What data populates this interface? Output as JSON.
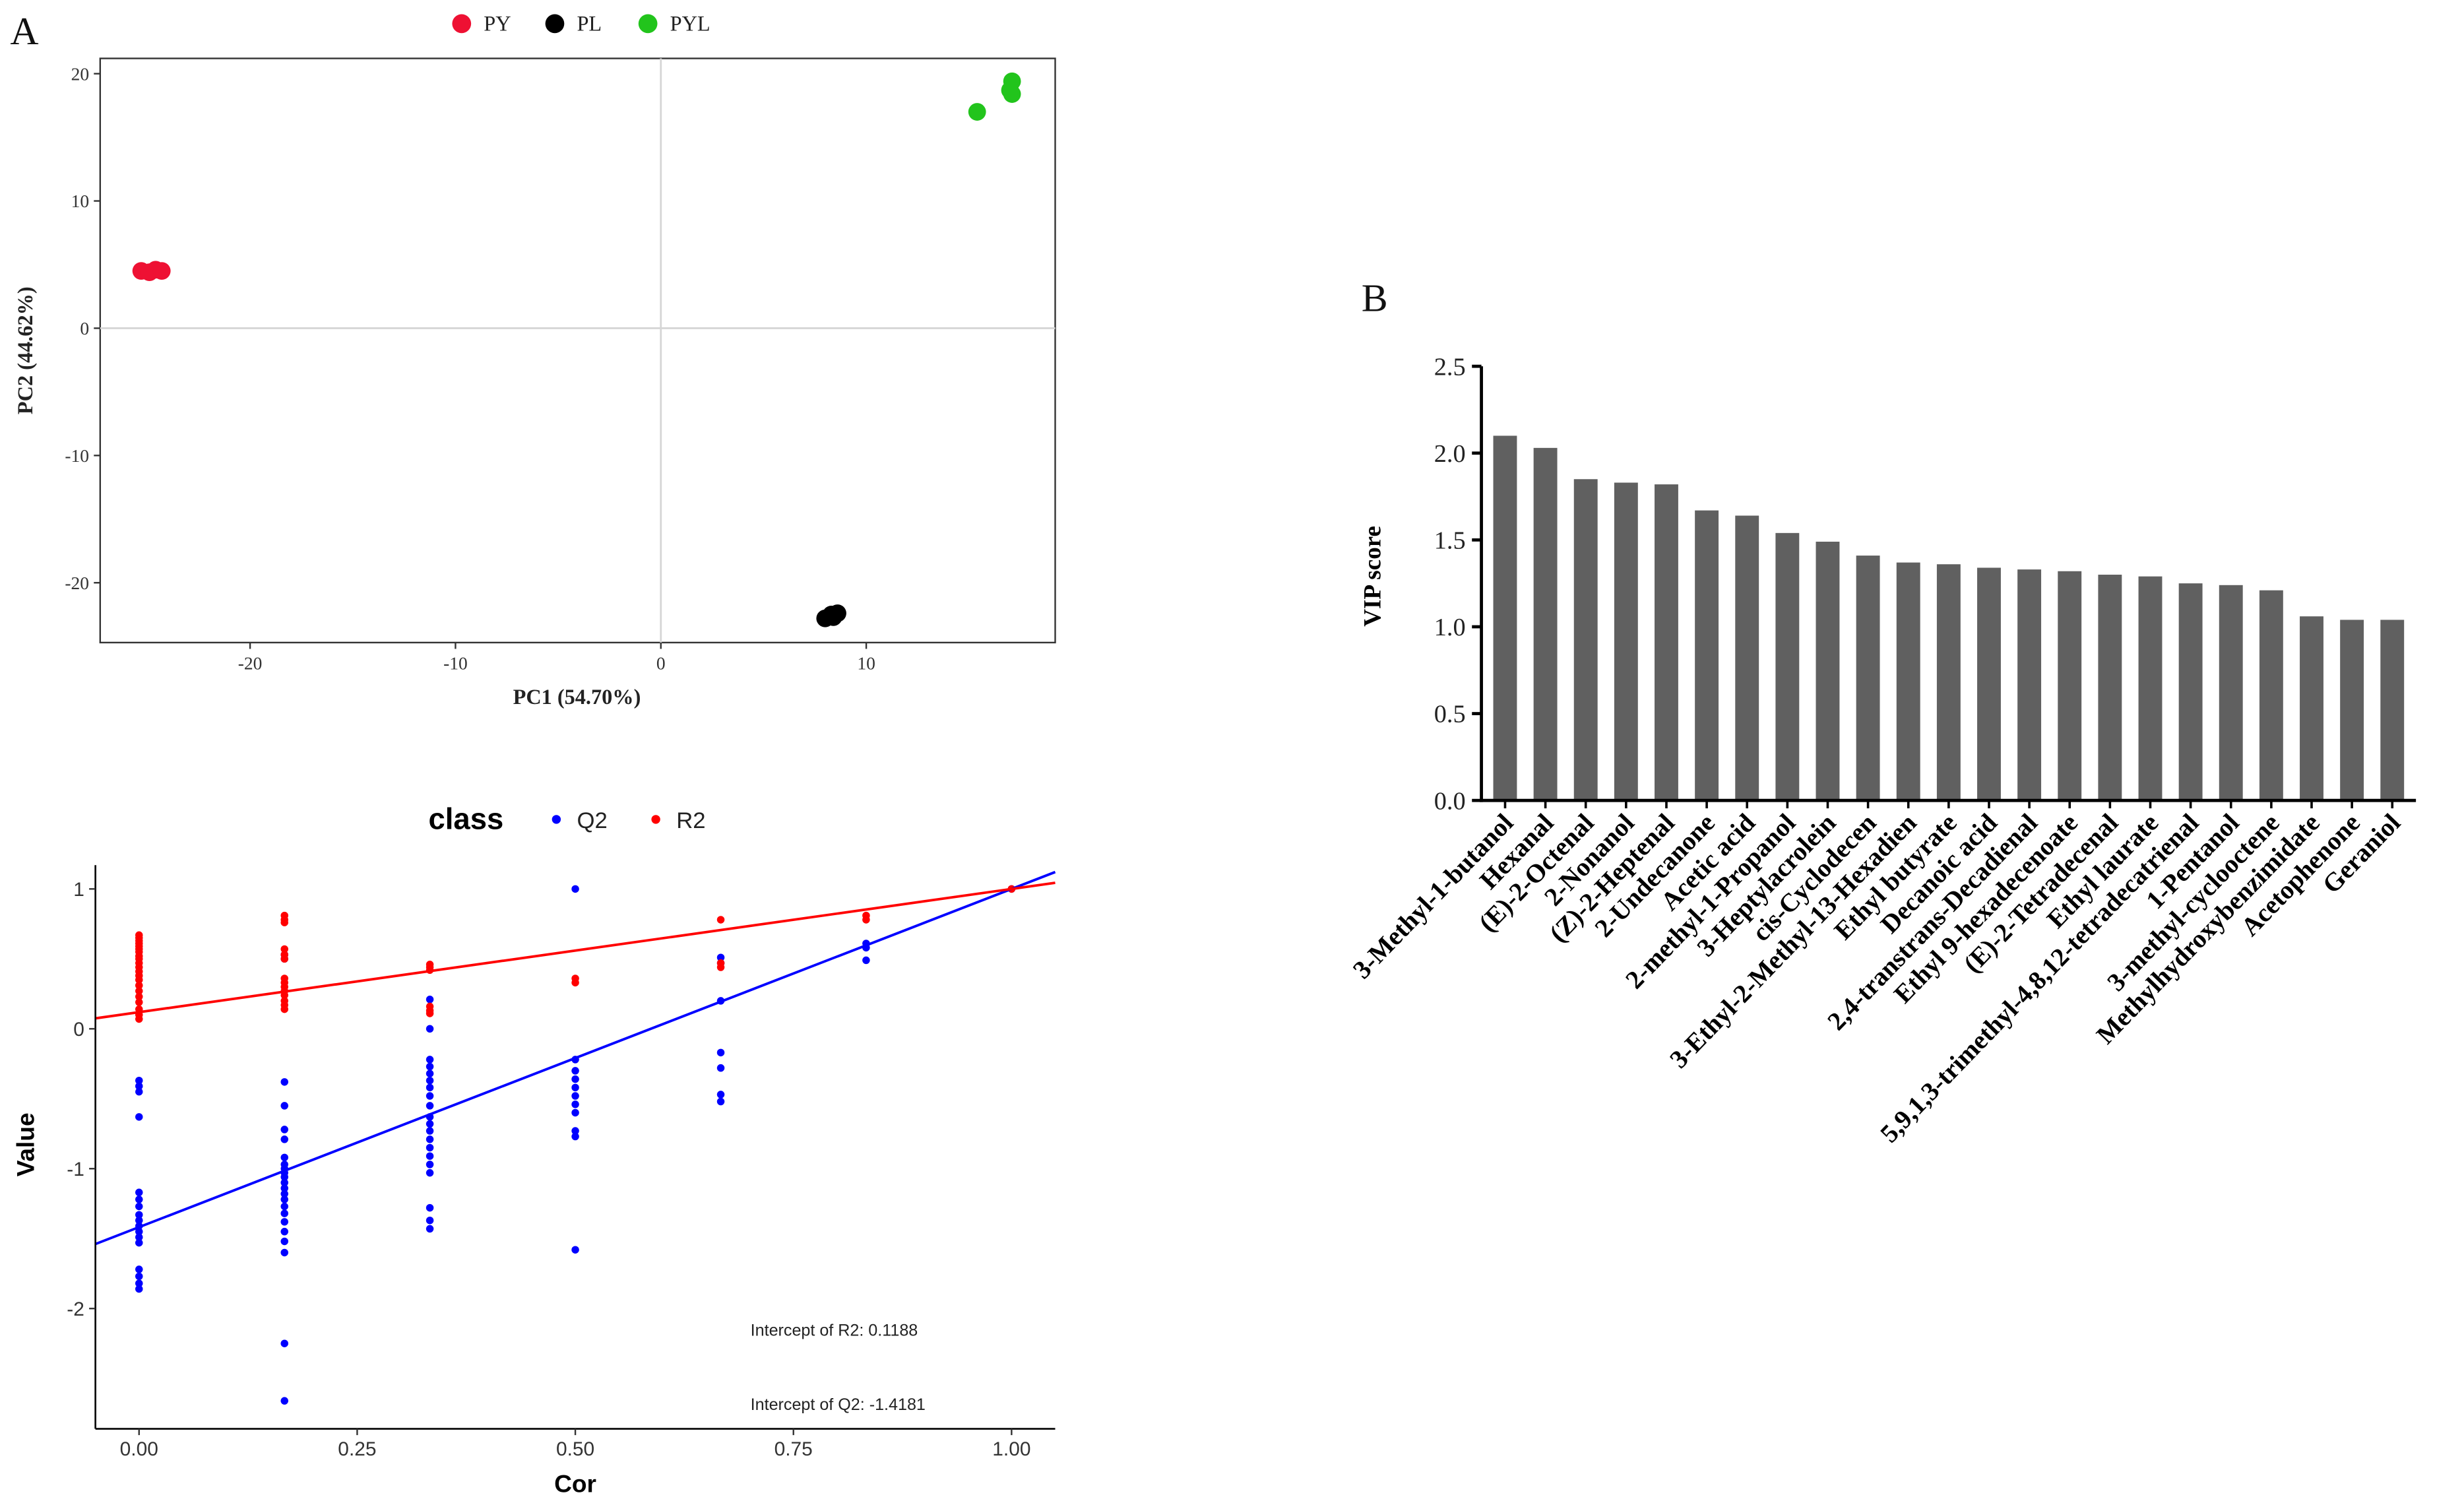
{
  "chart_data": [
    {
      "type": "scatter",
      "panel_label": "A",
      "xlabel": "PC1 (54.70%)",
      "ylabel": "PC2 (44.62%)",
      "xlim": [
        -27.3,
        19.2
      ],
      "ylim": [
        -24.7,
        21.2
      ],
      "xticks": [
        -20,
        -10,
        0,
        10
      ],
      "xtick_labels": [
        "-20",
        "-10",
        "0",
        "10"
      ],
      "yticks": [
        20,
        10,
        0,
        -10,
        -20
      ],
      "ytick_labels": [
        "20",
        "10",
        "0",
        "-10",
        "-20"
      ],
      "reference_lines": {
        "x": 0,
        "y": 0
      },
      "legend_position": "top",
      "series": [
        {
          "name": "PY",
          "color": "#ee1133",
          "points": [
            [
              -25.3,
              4.5
            ],
            [
              -24.9,
              4.4
            ],
            [
              -24.6,
              4.6
            ],
            [
              -24.3,
              4.5
            ]
          ]
        },
        {
          "name": "PL",
          "color": "#000000",
          "points": [
            [
              8.0,
              -22.8
            ],
            [
              8.3,
              -22.5
            ],
            [
              8.6,
              -22.4
            ],
            [
              8.4,
              -22.7
            ]
          ]
        },
        {
          "name": "PYL",
          "color": "#22c41c",
          "points": [
            [
              15.4,
              17.0
            ],
            [
              17.1,
              19.4
            ],
            [
              17.1,
              18.4
            ],
            [
              17.0,
              18.7
            ]
          ]
        }
      ]
    },
    {
      "type": "scatter",
      "legend_title": "class",
      "legend_position": "top",
      "xlabel": "Cor",
      "ylabel": "Value",
      "xlim": [
        -0.05,
        1.05
      ],
      "ylim": [
        -2.86,
        1.17
      ],
      "xticks": [
        0,
        0.25,
        0.5,
        0.75,
        1.0
      ],
      "xtick_labels": [
        "0.00",
        "0.25",
        "0.50",
        "0.75",
        "1.00"
      ],
      "yticks": [
        1,
        0,
        -1,
        -2
      ],
      "ytick_labels": [
        "1",
        "0",
        "-1",
        "-2"
      ],
      "series": [
        {
          "name": "Q2",
          "color": "#0000ff",
          "intercept": -1.4181,
          "slope": 2.4181,
          "groups": [
            {
              "x": 0,
              "y": [
                -0.37,
                -0.41,
                -0.45,
                -0.63,
                -1.17,
                -1.22,
                -1.27,
                -1.33,
                -1.37,
                -1.41,
                -1.45,
                -1.49,
                -1.53,
                -1.72,
                -1.77,
                -1.82,
                -1.86
              ]
            },
            {
              "x": 0.1667,
              "y": [
                0.53,
                0.5,
                -0.38,
                -0.55,
                -0.72,
                -0.79,
                -0.92,
                -0.97,
                -1.0,
                -1.03,
                -1.06,
                -1.1,
                -1.14,
                -1.18,
                -1.22,
                -1.27,
                -1.32,
                -1.38,
                -1.45,
                -1.52,
                -1.6,
                -2.25,
                -2.66
              ]
            },
            {
              "x": 0.3333,
              "y": [
                0.21,
                0.0,
                -0.22,
                -0.27,
                -0.32,
                -0.37,
                -0.42,
                -0.48,
                -0.55,
                -0.63,
                -0.68,
                -0.73,
                -0.79,
                -0.85,
                -0.91,
                -0.97,
                -1.03,
                -1.28,
                -1.37,
                -1.43
              ]
            },
            {
              "x": 0.5,
              "y": [
                1.0,
                -0.22,
                -0.3,
                -0.36,
                -0.42,
                -0.48,
                -0.54,
                -0.6,
                -0.73,
                -0.77,
                -1.58
              ]
            },
            {
              "x": 0.6667,
              "y": [
                0.51,
                0.47,
                0.2,
                -0.17,
                -0.28,
                -0.47,
                -0.52
              ]
            },
            {
              "x": 0.8333,
              "y": [
                0.61,
                0.58,
                0.49
              ]
            },
            {
              "x": 1.0,
              "y": [
                1.0
              ]
            }
          ]
        },
        {
          "name": "R2",
          "color": "#ff0000",
          "intercept": 0.1188,
          "slope": 0.8812,
          "groups": [
            {
              "x": 0,
              "y": [
                0.67,
                0.65,
                0.63,
                0.61,
                0.59,
                0.57,
                0.55,
                0.52,
                0.5,
                0.47,
                0.44,
                0.41,
                0.38,
                0.35,
                0.31,
                0.27,
                0.23,
                0.19,
                0.14,
                0.1,
                0.07
              ]
            },
            {
              "x": 0.1667,
              "y": [
                0.81,
                0.78,
                0.76,
                0.57,
                0.53,
                0.5,
                0.36,
                0.33,
                0.3,
                0.27,
                0.24,
                0.2,
                0.17,
                0.14
              ]
            },
            {
              "x": 0.3333,
              "y": [
                0.46,
                0.44,
                0.42,
                0.16,
                0.13,
                0.11
              ]
            },
            {
              "x": 0.5,
              "y": [
                0.36,
                0.33
              ]
            },
            {
              "x": 0.6667,
              "y": [
                0.78,
                0.47,
                0.44
              ]
            },
            {
              "x": 0.8333,
              "y": [
                0.81,
                0.78
              ]
            },
            {
              "x": 1.0,
              "y": [
                1.0
              ]
            }
          ]
        }
      ],
      "annotations": [
        "Intercept of R2: 0.1188",
        "Intercept of Q2: -1.4181"
      ]
    },
    {
      "type": "bar",
      "panel_label": "B",
      "ylabel": "VIP score",
      "ylim": [
        0,
        2.5
      ],
      "yticks": [
        2.5,
        2.0,
        1.5,
        1.0,
        0.5,
        0.0
      ],
      "ytick_labels": [
        "2.5",
        "2.0",
        "1.5",
        "1.0",
        "0.5",
        "0.0"
      ],
      "color": "#606060",
      "categories": [
        "3-Methyl-1-butanol",
        "Hexanal",
        "(E)-2-Octenal",
        "2-Nonanol",
        "(Z)-2-Heptenal",
        "2-Undecanone",
        "Acetic acid",
        "2-methyl-1-Propanol",
        "3-Heptylacrolein",
        "cis-Cyclodecen",
        "3-Ethyl-2-Methyl-13-Hexadien",
        "Ethyl butyrate",
        "Decanoic acid",
        "2,4-transtrans-Decadienal",
        "Ethyl 9-hexadecenoate",
        "(E)-2-Tetradecenal",
        "Ethyl laurate",
        "5,9,1,3-trimethyl-4,8,12-tetradecatrienal",
        "1-Pentanol",
        "3-methyl-cyclooctene",
        "Methylhydroxybenzimidate",
        "Acetophenone",
        "Geraniol"
      ],
      "values": [
        2.1,
        2.03,
        1.85,
        1.83,
        1.82,
        1.67,
        1.64,
        1.54,
        1.49,
        1.41,
        1.37,
        1.36,
        1.34,
        1.33,
        1.32,
        1.3,
        1.29,
        1.25,
        1.24,
        1.21,
        1.06,
        1.04,
        1.04
      ]
    }
  ]
}
